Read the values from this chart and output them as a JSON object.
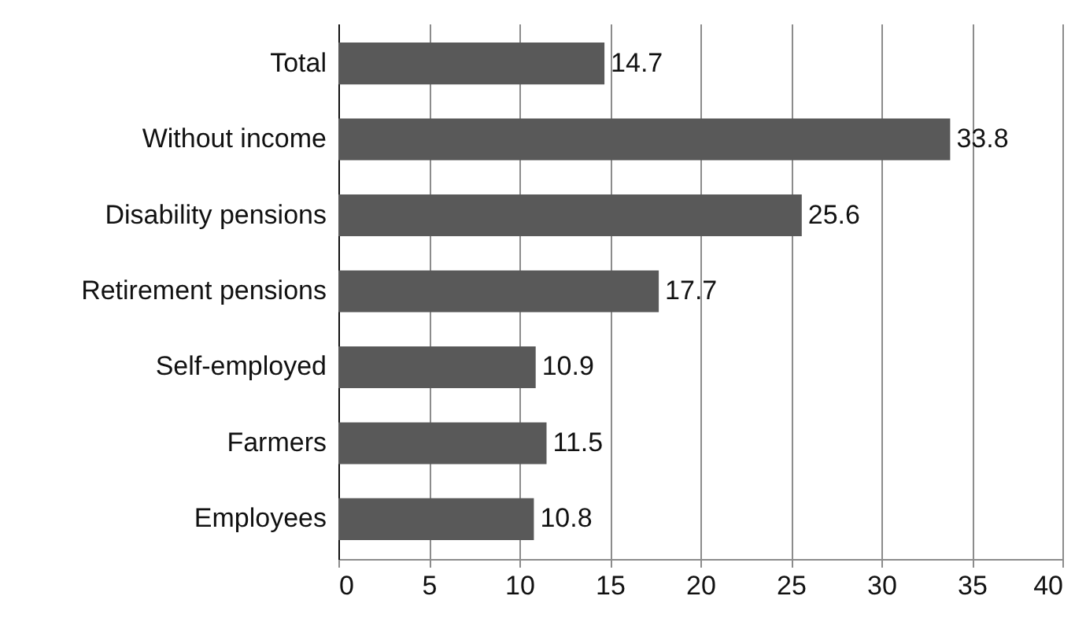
{
  "chart_data": {
    "type": "bar",
    "orientation": "horizontal",
    "categories": [
      "Total",
      "Without income",
      "Disability pensions",
      "Retirement pensions",
      "Self-employed",
      "Farmers",
      "Employees"
    ],
    "values": [
      14.7,
      33.8,
      25.6,
      17.7,
      10.9,
      11.5,
      10.8
    ],
    "color": "#595959",
    "xlim": [
      0,
      40
    ],
    "xticks": [
      0,
      5,
      10,
      15,
      20,
      25,
      30,
      35,
      40
    ],
    "grid": "x",
    "data_labels": true
  }
}
